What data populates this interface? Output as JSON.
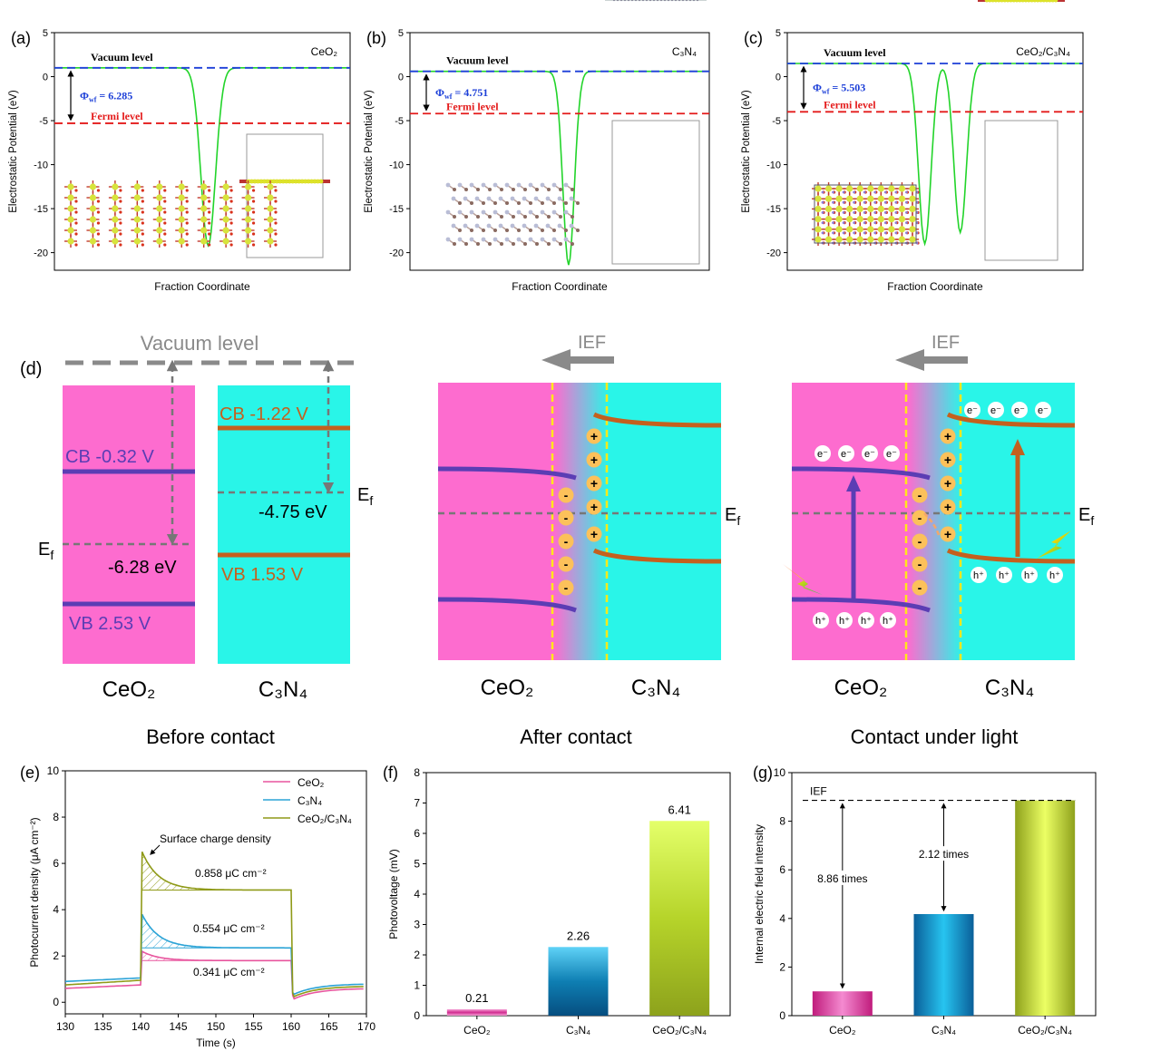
{
  "panels": {
    "a": {
      "tag": "(a)",
      "material": "CeO₂",
      "vacuum": "Vacuum level",
      "fermi": "Fermi level",
      "phi_prefix": "Φ",
      "phi_sub": "wf",
      "phi_value": " = 6.285",
      "ylabel": "Electrostatic Potential (eV)",
      "xlabel": "Fraction Coordinate",
      "yticks": [
        "5",
        "0",
        "-5",
        "-10",
        "-15",
        "-20"
      ]
    },
    "b": {
      "tag": "(b)",
      "material": "C₃N₄",
      "vacuum": "Vacuum level",
      "fermi": "Fermi level",
      "phi_prefix": "Φ",
      "phi_sub": "wf",
      "phi_value": " = 4.751",
      "ylabel": "Electrostatic Potential (eV)",
      "xlabel": "Fraction Coordinate",
      "yticks": [
        "5",
        "0",
        "-5",
        "-10",
        "-15",
        "-20"
      ]
    },
    "c": {
      "tag": "(c)",
      "material": "CeO₂/C₃N₄",
      "vacuum": "Vacuum level",
      "fermi": "Fermi level",
      "phi_prefix": "Φ",
      "phi_sub": "wf",
      "phi_value": " = 5.503",
      "ylabel": "Electrostatic Potential (eV)",
      "xlabel": "Fraction Coordinate",
      "yticks": [
        "5",
        "0",
        "-5",
        "-10",
        "-15",
        "-20"
      ]
    }
  },
  "diagram": {
    "tag": "(d)",
    "vacuum_label": "Vacuum level",
    "ief": "IEF",
    "ceo2_cb": "CB  -0.32 V",
    "ceo2_vb": "VB  2.53 V",
    "ceo2_ef": "-6.28 eV",
    "c3n4_cb": "CB  -1.22 V",
    "c3n4_vb": "VB  1.53 V",
    "c3n4_ef": "-4.75 eV",
    "ef": "E",
    "ef_sub": "f",
    "ceo2": "CeO₂",
    "c3n4": "C₃N₄",
    "captions": [
      "Before contact",
      "After contact",
      "Contact under light"
    ],
    "plus": "+",
    "minus": "-",
    "electron": "e⁻",
    "hole": "h⁺"
  },
  "chart_data": [
    {
      "panel": "a",
      "type": "line",
      "xlabel": "Fraction Coordinate",
      "ylabel": "Electrostatic Potential (eV)",
      "ylim": [
        -22,
        5
      ],
      "vacuum_level": 1.0,
      "fermi_level": -5.3,
      "work_function": 6.285
    },
    {
      "panel": "b",
      "type": "line",
      "xlabel": "Fraction Coordinate",
      "ylabel": "Electrostatic Potential (eV)",
      "ylim": [
        -22,
        5
      ],
      "vacuum_level": 0.6,
      "fermi_level": -4.2,
      "work_function": 4.751
    },
    {
      "panel": "c",
      "type": "line",
      "xlabel": "Fraction Coordinate",
      "ylabel": "Electrostatic Potential (eV)",
      "ylim": [
        -22,
        5
      ],
      "vacuum_level": 1.5,
      "fermi_level": -4.0,
      "work_function": 5.503
    },
    {
      "panel": "e",
      "tag": "(e)",
      "type": "line",
      "xlabel": "Time (s)",
      "ylabel": "Photocurrent density (μA cm⁻²)",
      "xlim": [
        130,
        170
      ],
      "ylim": [
        -0.5,
        10
      ],
      "xticks": [
        "130",
        "135",
        "140",
        "145",
        "150",
        "155",
        "160",
        "165",
        "170"
      ],
      "yticks": [
        "0",
        "2",
        "4",
        "6",
        "8",
        "10"
      ],
      "annotation": "Surface charge density",
      "charge_labels": [
        "0.858 μC cm⁻²",
        "0.554 μC cm⁻²",
        "0.341 μC cm⁻²"
      ],
      "series": [
        {
          "name": "CeO₂",
          "color": "#e8559e",
          "dark": 0.6,
          "dark_end": 0.75,
          "light_peak": 2.2,
          "light_steady": 1.8,
          "dark_after_peak": 0.15,
          "dark_after_end": 0.6
        },
        {
          "name": "C₃N₄",
          "color": "#2ba3d6",
          "dark": 0.9,
          "dark_end": 1.05,
          "light_peak": 3.8,
          "light_steady": 2.35,
          "dark_after_peak": 0.35,
          "dark_after_end": 0.8
        },
        {
          "name": "CeO₂/C₃N₄",
          "color": "#8f9a18",
          "dark": 0.75,
          "dark_end": 0.95,
          "light_peak": 6.5,
          "light_steady": 4.85,
          "dark_after_peak": 0.25,
          "dark_after_end": 0.7
        }
      ]
    },
    {
      "panel": "f",
      "tag": "(f)",
      "type": "bar",
      "ylabel": "Photovoltage (mV)",
      "ylim": [
        0,
        8
      ],
      "yticks": [
        "0",
        "1",
        "2",
        "3",
        "4",
        "5",
        "6",
        "7",
        "8"
      ],
      "categories": [
        "CeO₂",
        "C₃N₄",
        "CeO₂/C₃N₄"
      ],
      "values": [
        0.21,
        2.26,
        6.41
      ],
      "value_labels": [
        "0.21",
        "2.26",
        "6.41"
      ]
    },
    {
      "panel": "g",
      "tag": "(g)",
      "type": "bar",
      "ylabel": "Internal electric field intensity",
      "ylim": [
        0,
        10
      ],
      "yticks": [
        "0",
        "2",
        "4",
        "6",
        "8",
        "10"
      ],
      "categories": [
        "CeO₂",
        "C₃N₄",
        "CeO₂/C₃N₄"
      ],
      "values": [
        1.0,
        4.18,
        8.86
      ],
      "ief_label": "IEF",
      "ratio_labels": [
        "8.86 times",
        "2.12 times"
      ]
    }
  ],
  "colors": {
    "ceo2": "#fd6ccf",
    "c3n4": "#29f5e8",
    "cb_ceo2": "#5b3db4",
    "cb_c3n4": "#c4601e",
    "ief": "#8a8a8a",
    "ef_dash": "#777777"
  }
}
